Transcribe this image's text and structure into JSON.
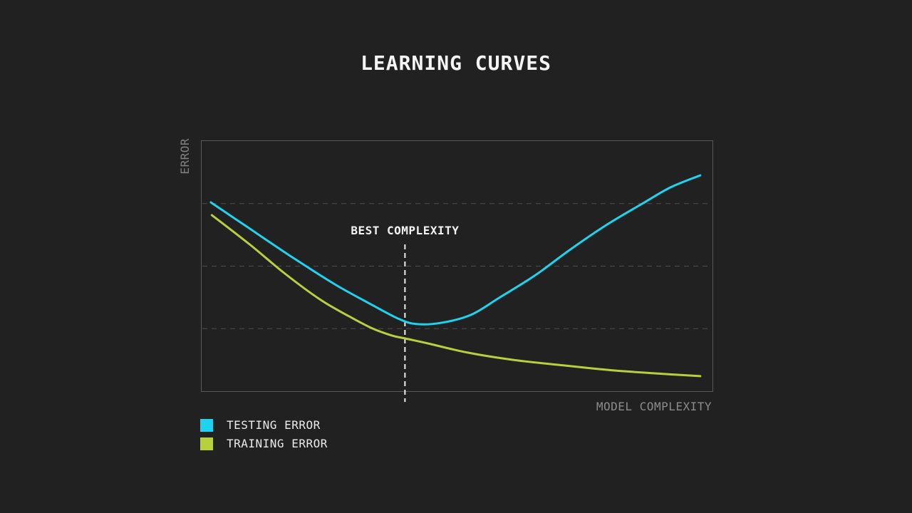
{
  "title": "LEARNING CURVES",
  "chart_data": {
    "type": "line",
    "title": "LEARNING CURVES",
    "xlabel": "MODEL COMPLEXITY",
    "ylabel": "ERROR",
    "x_ticks": [],
    "y_ticks": [],
    "grid": {
      "style": "horizontal-dashed",
      "y_fractions_from_top": [
        0.25,
        0.5,
        0.75
      ]
    },
    "legend_position": "bottom-left",
    "series": [
      {
        "name": "TESTING ERROR",
        "color": "#1fd3ef",
        "points": [
          [
            0.018,
            0.755
          ],
          [
            0.094,
            0.65
          ],
          [
            0.177,
            0.536
          ],
          [
            0.261,
            0.427
          ],
          [
            0.331,
            0.348
          ],
          [
            0.387,
            0.288
          ],
          [
            0.422,
            0.268
          ],
          [
            0.471,
            0.274
          ],
          [
            0.527,
            0.305
          ],
          [
            0.582,
            0.373
          ],
          [
            0.652,
            0.462
          ],
          [
            0.722,
            0.567
          ],
          [
            0.792,
            0.664
          ],
          [
            0.862,
            0.749
          ],
          [
            0.918,
            0.815
          ],
          [
            0.976,
            0.863
          ]
        ]
      },
      {
        "name": "TRAINING ERROR",
        "color": "#b6d13b",
        "points": [
          [
            0.02,
            0.704
          ],
          [
            0.094,
            0.587
          ],
          [
            0.163,
            0.47
          ],
          [
            0.233,
            0.365
          ],
          [
            0.289,
            0.299
          ],
          [
            0.334,
            0.251
          ],
          [
            0.373,
            0.222
          ],
          [
            0.398,
            0.211
          ],
          [
            0.443,
            0.191
          ],
          [
            0.521,
            0.154
          ],
          [
            0.61,
            0.125
          ],
          [
            0.708,
            0.103
          ],
          [
            0.806,
            0.083
          ],
          [
            0.89,
            0.071
          ],
          [
            0.976,
            0.06
          ]
        ]
      }
    ],
    "annotation": {
      "label": "BEST COMPLEXITY",
      "x_fraction": 0.398,
      "line_top_fraction": 0.413,
      "line_bottom_fraction": 1.043
    }
  },
  "legend": {
    "items": [
      {
        "label": "TESTING ERROR",
        "color": "#1fd3ef"
      },
      {
        "label": "TRAINING ERROR",
        "color": "#b6d13b"
      }
    ]
  },
  "colors": {
    "background": "#212121",
    "plot_border": "#5a5a5a",
    "gridline": "#4e4e4e",
    "title_text": "#f5f5f5",
    "axis_label_text": "#8c8c8c",
    "annotation_line": "#ededed",
    "legend_text": "#ebebeb",
    "testing_error": "#1fd3ef",
    "training_error": "#b6d13b"
  }
}
